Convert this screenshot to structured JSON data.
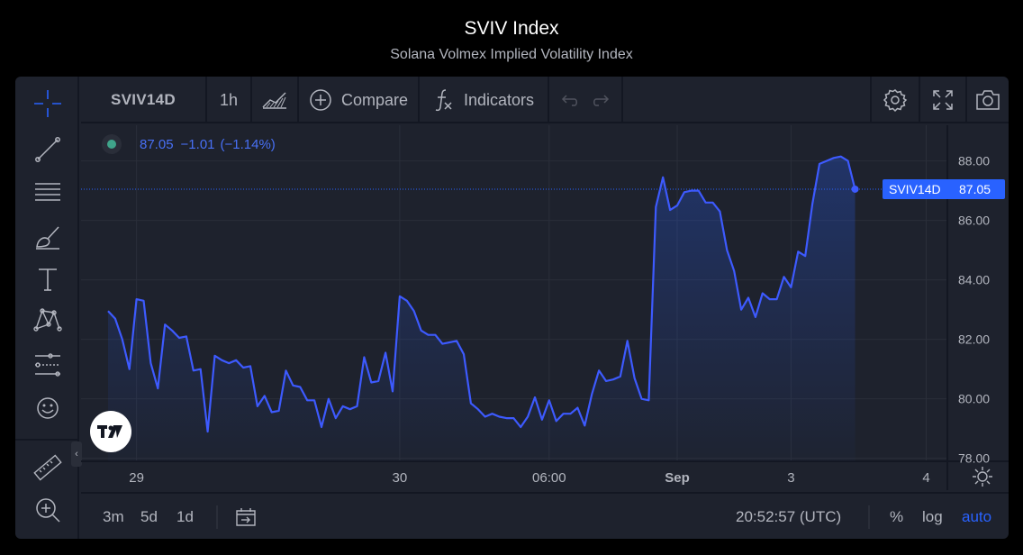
{
  "page": {
    "title": "SVIV Index",
    "subtitle": "Solana Volmex Implied Volatility Index"
  },
  "toolbar": {
    "symbol": "SVIV14D",
    "interval": "1h",
    "compare_label": "Compare",
    "indicators_label": "Indicators"
  },
  "left_tools": [
    {
      "name": "crosshair-icon"
    },
    {
      "name": "trend-line-icon"
    },
    {
      "name": "horizontal-lines-icon"
    },
    {
      "name": "brush-icon"
    },
    {
      "name": "text-icon"
    },
    {
      "name": "pattern-icon"
    },
    {
      "name": "prediction-icon"
    },
    {
      "name": "emoji-icon"
    },
    {
      "name": "ruler-icon"
    },
    {
      "name": "zoom-in-icon"
    }
  ],
  "legend": {
    "value": "87.05",
    "change": "−1.01",
    "change_pct": "(−1.14%)"
  },
  "price_label": {
    "symbol": "SVIV14D",
    "value": "87.05"
  },
  "bottom": {
    "ranges": [
      "3m",
      "5d",
      "1d"
    ],
    "time": "20:52:57 (UTC)",
    "pct": "%",
    "log": "log",
    "auto": "auto"
  },
  "colors": {
    "line": "#3d5afe",
    "accent": "#2962ff",
    "background": "#1e222d"
  },
  "chart_data": {
    "type": "line",
    "series": [
      {
        "name": "SVIV14D",
        "values": [
          82.95,
          82.7,
          82.0,
          81.0,
          83.35,
          83.3,
          81.2,
          80.35,
          82.5,
          82.3,
          82.05,
          82.1,
          80.95,
          81.0,
          78.9,
          81.45,
          81.3,
          81.2,
          81.3,
          81.05,
          81.1,
          79.75,
          80.1,
          79.55,
          79.6,
          80.95,
          80.45,
          80.4,
          79.95,
          79.95,
          79.05,
          80.0,
          79.35,
          79.75,
          79.65,
          79.75,
          81.4,
          80.55,
          80.6,
          81.55,
          80.25,
          83.45,
          83.3,
          82.95,
          82.3,
          82.15,
          82.15,
          81.85,
          81.9,
          81.95,
          81.5,
          79.85,
          79.65,
          79.4,
          79.5,
          79.4,
          79.35,
          79.35,
          79.05,
          79.4,
          80.05,
          79.3,
          79.95,
          79.25,
          79.5,
          79.5,
          79.7,
          79.1,
          80.15,
          80.95,
          80.6,
          80.65,
          80.75,
          81.95,
          80.7,
          80.0,
          79.95,
          86.45,
          87.45,
          86.35,
          86.5,
          86.95,
          87.0,
          87.0,
          86.6,
          86.6,
          86.3,
          85.0,
          84.3,
          83.0,
          83.4,
          82.75,
          83.55,
          83.35,
          83.35,
          84.1,
          83.75,
          84.95,
          84.8,
          86.55,
          87.9,
          88.0,
          88.1,
          88.15,
          88.0,
          87.05
        ]
      }
    ],
    "x_ticks": [
      {
        "label": "29",
        "index": 4
      },
      {
        "label": "30",
        "index": 41
      },
      {
        "label": "06:00",
        "index": 62
      },
      {
        "label": "Sep",
        "index": 80
      },
      {
        "label": "3",
        "index": 96
      },
      {
        "label": "4",
        "index": 115
      }
    ],
    "y_ticks": [
      "78.00",
      "80.00",
      "82.00",
      "84.00",
      "86.00",
      "88.00"
    ],
    "ylim": [
      77.9,
      89.2
    ],
    "last_value": 87.05,
    "grid": true
  }
}
